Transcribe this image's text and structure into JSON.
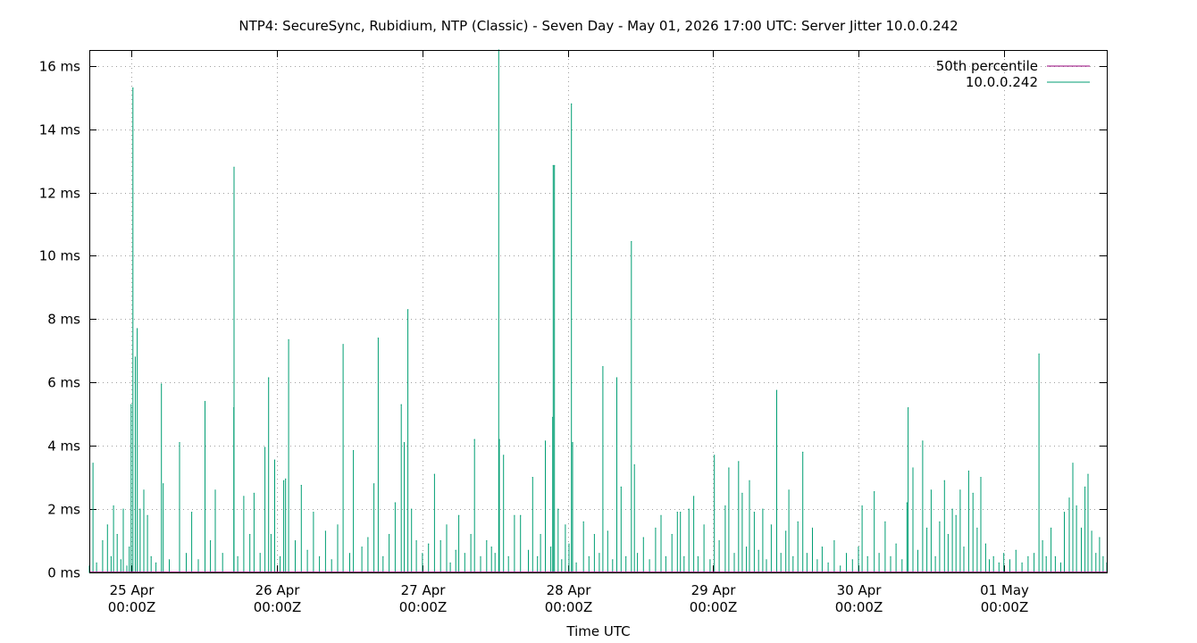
{
  "chart_data": {
    "type": "line",
    "title": "NTP4: SecureSync, Rubidium, NTP (Classic) - Seven Day - May 01, 2026 17:00 UTC: Server Jitter 10.0.0.242",
    "xlabel": "Time UTC",
    "ylabel": "",
    "x_unit": "hours since 24 Apr 2026 17:00Z",
    "xlim": [
      0,
      168
    ],
    "ylim": [
      0,
      16.5
    ],
    "y_ticks": [
      {
        "value": 0,
        "label": "0 ms"
      },
      {
        "value": 2,
        "label": "2 ms"
      },
      {
        "value": 4,
        "label": "4 ms"
      },
      {
        "value": 6,
        "label": "6 ms"
      },
      {
        "value": 8,
        "label": "8 ms"
      },
      {
        "value": 10,
        "label": "10 ms"
      },
      {
        "value": 12,
        "label": "12 ms"
      },
      {
        "value": 14,
        "label": "14 ms"
      },
      {
        "value": 16,
        "label": "16 ms"
      }
    ],
    "x_ticks": [
      {
        "value": 7,
        "line1": "25 Apr",
        "line2": "00:00Z"
      },
      {
        "value": 31,
        "line1": "26 Apr",
        "line2": "00:00Z"
      },
      {
        "value": 55,
        "line1": "27 Apr",
        "line2": "00:00Z"
      },
      {
        "value": 79,
        "line1": "28 Apr",
        "line2": "00:00Z"
      },
      {
        "value": 103,
        "line1": "29 Apr",
        "line2": "00:00Z"
      },
      {
        "value": 127,
        "line1": "30 Apr",
        "line2": "00:00Z"
      },
      {
        "value": 151,
        "line1": "01 May",
        "line2": "00:00Z"
      }
    ],
    "grid": true,
    "legend_position": "top-right",
    "series": [
      {
        "name": "50th percentile",
        "color": "#94007a",
        "values": [
          [
            0,
            0.0
          ],
          [
            168,
            0.0
          ]
        ]
      },
      {
        "name": "10.0.0.242",
        "color": "#009e73",
        "values": [
          [
            0.0,
            0.2
          ],
          [
            0.6,
            3.45
          ],
          [
            1.2,
            0.3
          ],
          [
            2.2,
            1.0
          ],
          [
            3.0,
            1.5
          ],
          [
            3.6,
            0.5
          ],
          [
            4.0,
            2.1
          ],
          [
            4.6,
            1.2
          ],
          [
            5.2,
            0.4
          ],
          [
            5.6,
            2.0
          ],
          [
            6.2,
            0.2
          ],
          [
            6.6,
            0.8
          ],
          [
            6.9,
            5.3
          ],
          [
            7.2,
            15.3
          ],
          [
            7.6,
            6.8
          ],
          [
            7.9,
            7.7
          ],
          [
            8.4,
            2.0
          ],
          [
            9.0,
            2.6
          ],
          [
            9.6,
            1.8
          ],
          [
            10.2,
            0.5
          ],
          [
            11.0,
            0.3
          ],
          [
            11.9,
            5.95
          ],
          [
            12.2,
            2.8
          ],
          [
            13.2,
            0.4
          ],
          [
            14.9,
            4.1
          ],
          [
            16.0,
            0.6
          ],
          [
            16.9,
            1.9
          ],
          [
            18.0,
            0.4
          ],
          [
            19.1,
            5.4
          ],
          [
            20.0,
            1.0
          ],
          [
            20.8,
            2.6
          ],
          [
            22.0,
            0.6
          ],
          [
            23.9,
            12.8
          ],
          [
            23.85,
            5.2
          ],
          [
            24.5,
            0.5
          ],
          [
            25.5,
            2.4
          ],
          [
            26.5,
            1.2
          ],
          [
            27.2,
            2.5
          ],
          [
            28.2,
            0.6
          ],
          [
            29.0,
            3.95
          ],
          [
            29.6,
            6.15
          ],
          [
            30.0,
            1.2
          ],
          [
            30.6,
            3.55
          ],
          [
            31.5,
            0.5
          ],
          [
            32.1,
            2.9
          ],
          [
            32.4,
            2.95
          ],
          [
            32.9,
            7.35
          ],
          [
            34.0,
            1.0
          ],
          [
            35.0,
            2.75
          ],
          [
            36.0,
            0.7
          ],
          [
            37.0,
            1.9
          ],
          [
            38.0,
            0.5
          ],
          [
            39.0,
            1.3
          ],
          [
            40.0,
            0.4
          ],
          [
            41.0,
            1.5
          ],
          [
            41.9,
            7.2
          ],
          [
            43.0,
            0.6
          ],
          [
            43.6,
            3.85
          ],
          [
            45.0,
            0.8
          ],
          [
            46.0,
            1.1
          ],
          [
            47.0,
            2.8
          ],
          [
            47.7,
            7.4
          ],
          [
            48.5,
            0.5
          ],
          [
            49.5,
            1.2
          ],
          [
            50.5,
            2.2
          ],
          [
            51.5,
            5.3
          ],
          [
            52.0,
            4.1
          ],
          [
            52.6,
            8.3
          ],
          [
            53.2,
            2.0
          ],
          [
            54.0,
            1.0
          ],
          [
            55.0,
            0.6
          ],
          [
            56.0,
            0.9
          ],
          [
            57.0,
            3.1
          ],
          [
            58.0,
            1.0
          ],
          [
            59.0,
            1.5
          ],
          [
            59.6,
            0.3
          ],
          [
            60.5,
            0.7
          ],
          [
            61.0,
            1.8
          ],
          [
            62.0,
            0.6
          ],
          [
            63.0,
            1.2
          ],
          [
            63.6,
            4.2
          ],
          [
            64.6,
            0.5
          ],
          [
            65.6,
            1.0
          ],
          [
            66.4,
            0.8
          ],
          [
            67.0,
            0.6
          ],
          [
            67.6,
            16.5
          ],
          [
            67.7,
            4.2
          ],
          [
            68.4,
            3.7
          ],
          [
            69.2,
            0.5
          ],
          [
            70.2,
            1.8
          ],
          [
            71.2,
            1.8
          ],
          [
            72.5,
            0.7
          ],
          [
            73.2,
            3.0
          ],
          [
            74.0,
            0.5
          ],
          [
            74.5,
            1.2
          ],
          [
            75.3,
            4.15
          ],
          [
            76.2,
            0.8
          ],
          [
            76.5,
            4.9
          ],
          [
            76.6,
            12.85
          ],
          [
            76.8,
            12.85
          ],
          [
            77.4,
            2.0
          ],
          [
            78.0,
            0.4
          ],
          [
            78.6,
            1.5
          ],
          [
            79.2,
            0.9
          ],
          [
            79.6,
            14.8
          ],
          [
            79.8,
            4.1
          ],
          [
            80.4,
            0.3
          ],
          [
            81.6,
            1.6
          ],
          [
            82.5,
            0.5
          ],
          [
            83.4,
            1.2
          ],
          [
            84.2,
            0.6
          ],
          [
            84.8,
            6.5
          ],
          [
            85.6,
            1.3
          ],
          [
            86.4,
            0.4
          ],
          [
            87.1,
            6.15
          ],
          [
            87.8,
            2.7
          ],
          [
            88.6,
            0.5
          ],
          [
            89.5,
            10.45
          ],
          [
            90.0,
            3.4
          ],
          [
            90.5,
            0.6
          ],
          [
            91.5,
            1.1
          ],
          [
            92.5,
            0.4
          ],
          [
            93.5,
            1.4
          ],
          [
            94.4,
            1.8
          ],
          [
            95.2,
            0.5
          ],
          [
            96.2,
            1.2
          ],
          [
            97.1,
            1.9
          ],
          [
            97.6,
            1.9
          ],
          [
            98.2,
            0.5
          ],
          [
            99.0,
            2.0
          ],
          [
            99.8,
            2.4
          ],
          [
            100.5,
            0.5
          ],
          [
            101.5,
            1.5
          ],
          [
            102.5,
            0.4
          ],
          [
            103.2,
            3.7
          ],
          [
            104.0,
            1.0
          ],
          [
            105.0,
            2.1
          ],
          [
            105.6,
            3.3
          ],
          [
            106.5,
            0.6
          ],
          [
            107.2,
            3.5
          ],
          [
            107.8,
            2.5
          ],
          [
            108.5,
            0.8
          ],
          [
            109.0,
            2.9
          ],
          [
            109.8,
            1.9
          ],
          [
            110.5,
            0.7
          ],
          [
            111.2,
            2.0
          ],
          [
            111.8,
            0.4
          ],
          [
            112.6,
            1.5
          ],
          [
            113.5,
            5.75
          ],
          [
            114.2,
            0.6
          ],
          [
            115.0,
            1.3
          ],
          [
            115.5,
            2.6
          ],
          [
            116.2,
            0.5
          ],
          [
            117.0,
            1.6
          ],
          [
            117.8,
            3.8
          ],
          [
            118.5,
            0.6
          ],
          [
            119.4,
            1.4
          ],
          [
            120.2,
            0.4
          ],
          [
            121.0,
            0.8
          ],
          [
            122.0,
            0.3
          ],
          [
            123.0,
            1.0
          ],
          [
            124.0,
            0.2
          ],
          [
            125.0,
            0.6
          ],
          [
            126.0,
            0.4
          ],
          [
            127.0,
            0.8
          ],
          [
            127.6,
            2.1
          ],
          [
            128.5,
            0.5
          ],
          [
            129.6,
            2.55
          ],
          [
            130.4,
            0.6
          ],
          [
            131.4,
            1.6
          ],
          [
            132.3,
            0.5
          ],
          [
            133.2,
            0.9
          ],
          [
            134.2,
            0.4
          ],
          [
            135.0,
            2.2
          ],
          [
            135.2,
            5.2
          ],
          [
            136.0,
            3.3
          ],
          [
            136.8,
            0.7
          ],
          [
            137.6,
            4.15
          ],
          [
            138.3,
            1.4
          ],
          [
            139.0,
            2.6
          ],
          [
            139.7,
            0.5
          ],
          [
            140.4,
            1.6
          ],
          [
            141.2,
            2.9
          ],
          [
            141.8,
            1.2
          ],
          [
            142.5,
            2.0
          ],
          [
            143.1,
            1.8
          ],
          [
            143.8,
            2.6
          ],
          [
            144.4,
            0.8
          ],
          [
            145.2,
            3.2
          ],
          [
            145.9,
            2.5
          ],
          [
            146.6,
            1.4
          ],
          [
            147.2,
            3.0
          ],
          [
            148.0,
            0.9
          ],
          [
            148.6,
            0.4
          ],
          [
            149.3,
            0.5
          ],
          [
            150.2,
            0.3
          ],
          [
            151.0,
            0.6
          ],
          [
            152.0,
            0.4
          ],
          [
            153.0,
            0.7
          ],
          [
            154.0,
            0.3
          ],
          [
            155.0,
            0.5
          ],
          [
            156.0,
            0.6
          ],
          [
            156.8,
            6.9
          ],
          [
            157.4,
            1.0
          ],
          [
            158.0,
            0.5
          ],
          [
            158.8,
            1.4
          ],
          [
            159.5,
            0.5
          ],
          [
            160.4,
            0.3
          ],
          [
            161.0,
            1.9
          ],
          [
            161.8,
            2.35
          ],
          [
            162.4,
            3.45
          ],
          [
            163.0,
            2.1
          ],
          [
            163.8,
            1.4
          ],
          [
            164.4,
            2.7
          ],
          [
            164.9,
            3.1
          ],
          [
            165.5,
            1.3
          ],
          [
            166.2,
            0.6
          ],
          [
            166.8,
            1.1
          ],
          [
            167.4,
            0.5
          ],
          [
            168.0,
            0.3
          ]
        ]
      }
    ]
  }
}
